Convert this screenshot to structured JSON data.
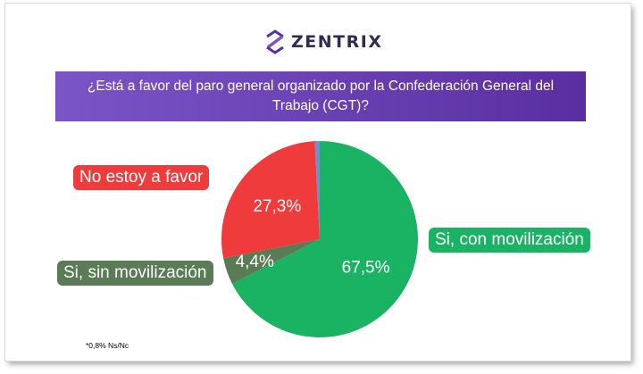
{
  "brand": {
    "name": "ZENTRIX",
    "logo_icon": "zentrix-logo-icon"
  },
  "question": "¿Está a favor del paro general organizado por la Confederación General del Trabajo (CGT)?",
  "labels": {
    "no": "No estoy a favor",
    "con": "Si, con movilización",
    "sin": "Si, sin movilización"
  },
  "footnote": "*0,8% Ns/Nc",
  "colors": {
    "banner_start": "#7a55c8",
    "banner_end": "#5a2ea0",
    "con": "#19b363",
    "no": "#ef3b3b",
    "sin": "#5b7a56",
    "nsnc": "#6f8fcf"
  },
  "chart_data": {
    "type": "pie",
    "slices": [
      {
        "label": "Si, con movilización",
        "value": 67.5,
        "display": "67,5%",
        "color": "#19b363"
      },
      {
        "label": "Si, sin movilización",
        "value": 4.4,
        "display": "4,4%",
        "color": "#5b7a56"
      },
      {
        "label": "No estoy a favor",
        "value": 27.3,
        "display": "27,3%",
        "color": "#ef3b3b"
      },
      {
        "label": "Ns/Nc",
        "value": 0.8,
        "display": "",
        "color": "#6f8fcf"
      }
    ]
  }
}
